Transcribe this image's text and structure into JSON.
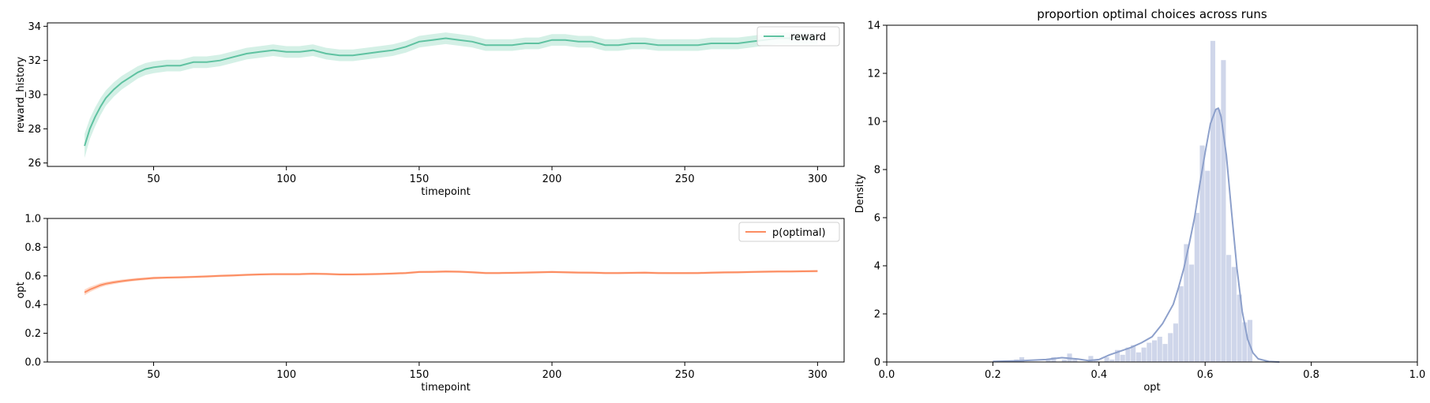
{
  "chart_data": [
    {
      "id": "reward",
      "type": "line",
      "xlabel": "timepoint",
      "ylabel": "reward_history",
      "xlim": [
        10,
        310
      ],
      "ylim": [
        25.8,
        34.2
      ],
      "xticks": [
        50,
        100,
        150,
        200,
        250,
        300
      ],
      "yticks": [
        26,
        28,
        30,
        32,
        34
      ],
      "legend": "top-right",
      "colors": {
        "line": "#5fc2a1",
        "band": "#d4f0e6"
      },
      "series": [
        {
          "name": "reward",
          "x": [
            24,
            26,
            28,
            30,
            32,
            35,
            38,
            41,
            44,
            47,
            50,
            55,
            60,
            65,
            70,
            75,
            80,
            85,
            90,
            95,
            100,
            105,
            110,
            115,
            120,
            125,
            130,
            135,
            140,
            145,
            150,
            155,
            160,
            165,
            170,
            175,
            180,
            185,
            190,
            195,
            200,
            205,
            210,
            215,
            220,
            225,
            230,
            235,
            240,
            245,
            250,
            255,
            260,
            265,
            270,
            275,
            280,
            285,
            290,
            295,
            300
          ],
          "y": [
            27.0,
            28.0,
            28.7,
            29.3,
            29.8,
            30.3,
            30.7,
            31.0,
            31.3,
            31.5,
            31.6,
            31.7,
            31.7,
            31.9,
            31.9,
            32.0,
            32.2,
            32.4,
            32.5,
            32.6,
            32.5,
            32.5,
            32.6,
            32.4,
            32.3,
            32.3,
            32.4,
            32.5,
            32.6,
            32.8,
            33.1,
            33.2,
            33.3,
            33.2,
            33.1,
            32.9,
            32.9,
            32.9,
            33.0,
            33.0,
            33.2,
            33.2,
            33.1,
            33.1,
            32.9,
            32.9,
            33.0,
            33.0,
            32.9,
            32.9,
            32.9,
            32.9,
            33.0,
            33.0,
            33.0,
            33.1,
            33.2,
            33.3,
            33.3,
            33.3,
            33.3
          ],
          "ci": [
            0.7,
            0.6,
            0.55,
            0.5,
            0.45,
            0.42,
            0.4,
            0.38,
            0.36,
            0.35,
            0.35,
            0.34,
            0.34,
            0.34,
            0.34,
            0.34,
            0.34,
            0.34,
            0.34,
            0.34,
            0.34,
            0.34,
            0.34,
            0.34,
            0.34,
            0.34,
            0.34,
            0.34,
            0.34,
            0.34,
            0.34,
            0.34,
            0.34,
            0.34,
            0.34,
            0.34,
            0.34,
            0.34,
            0.34,
            0.34,
            0.34,
            0.34,
            0.34,
            0.34,
            0.34,
            0.34,
            0.34,
            0.34,
            0.34,
            0.34,
            0.34,
            0.34,
            0.34,
            0.34,
            0.34,
            0.34,
            0.34,
            0.34,
            0.34,
            0.34,
            0.34
          ]
        }
      ]
    },
    {
      "id": "opt",
      "type": "line",
      "xlabel": "timepoint",
      "ylabel": "opt",
      "xlim": [
        10,
        310
      ],
      "ylim": [
        0.0,
        1.0
      ],
      "xticks": [
        50,
        100,
        150,
        200,
        250,
        300
      ],
      "yticks": [
        0.0,
        0.2,
        0.4,
        0.6,
        0.8,
        1.0
      ],
      "legend": "top-right",
      "colors": {
        "line": "#fc8d62",
        "band": "#fed9c9"
      },
      "series": [
        {
          "name": "p(optimal)",
          "x": [
            24,
            26,
            28,
            30,
            32,
            35,
            38,
            41,
            44,
            47,
            50,
            55,
            60,
            65,
            70,
            75,
            80,
            85,
            90,
            95,
            100,
            105,
            110,
            115,
            120,
            125,
            130,
            135,
            140,
            145,
            150,
            155,
            160,
            165,
            170,
            175,
            180,
            185,
            190,
            195,
            200,
            205,
            210,
            215,
            220,
            225,
            230,
            235,
            240,
            245,
            250,
            255,
            260,
            265,
            270,
            275,
            280,
            285,
            290,
            295,
            300
          ],
          "y": [
            0.485,
            0.505,
            0.52,
            0.535,
            0.545,
            0.555,
            0.563,
            0.57,
            0.576,
            0.58,
            0.585,
            0.588,
            0.59,
            0.593,
            0.596,
            0.6,
            0.603,
            0.607,
            0.61,
            0.612,
            0.612,
            0.612,
            0.615,
            0.613,
            0.61,
            0.61,
            0.611,
            0.613,
            0.616,
            0.62,
            0.627,
            0.628,
            0.63,
            0.629,
            0.625,
            0.62,
            0.62,
            0.621,
            0.623,
            0.625,
            0.627,
            0.625,
            0.623,
            0.622,
            0.62,
            0.62,
            0.621,
            0.622,
            0.62,
            0.619,
            0.619,
            0.62,
            0.622,
            0.624,
            0.625,
            0.627,
            0.629,
            0.63,
            0.631,
            0.632,
            0.633
          ],
          "ci": [
            0.02,
            0.018,
            0.016,
            0.015,
            0.013,
            0.012,
            0.011,
            0.01,
            0.01,
            0.009,
            0.009,
            0.008,
            0.008,
            0.008,
            0.008,
            0.008,
            0.008,
            0.008,
            0.008,
            0.008,
            0.008,
            0.008,
            0.008,
            0.008,
            0.008,
            0.008,
            0.008,
            0.008,
            0.008,
            0.008,
            0.008,
            0.008,
            0.008,
            0.008,
            0.008,
            0.008,
            0.008,
            0.008,
            0.008,
            0.008,
            0.008,
            0.008,
            0.008,
            0.008,
            0.008,
            0.008,
            0.008,
            0.008,
            0.008,
            0.008,
            0.008,
            0.008,
            0.008,
            0.008,
            0.008,
            0.008,
            0.008,
            0.008,
            0.008,
            0.008,
            0.008
          ]
        }
      ]
    },
    {
      "id": "hist",
      "type": "bar",
      "title": "proportion optimal choices across runs",
      "xlabel": "opt",
      "ylabel": "Density",
      "xlim": [
        0.0,
        1.0
      ],
      "ylim": [
        0,
        14
      ],
      "xticks": [
        0.0,
        0.2,
        0.4,
        0.6,
        0.8,
        1.0
      ],
      "yticks": [
        0,
        2,
        4,
        6,
        8,
        10,
        12,
        14
      ],
      "colors": {
        "bars": "#cfd6ea",
        "kde": "#8da0cb"
      },
      "bins": {
        "left": [
          0.24,
          0.25,
          0.26,
          0.27,
          0.28,
          0.29,
          0.3,
          0.31,
          0.32,
          0.33,
          0.34,
          0.35,
          0.36,
          0.37,
          0.38,
          0.39,
          0.4,
          0.41,
          0.42,
          0.43,
          0.44,
          0.45,
          0.46,
          0.47,
          0.48,
          0.49,
          0.5,
          0.51,
          0.52,
          0.53,
          0.54,
          0.55,
          0.56,
          0.57,
          0.58,
          0.59,
          0.6,
          0.61,
          0.62,
          0.63,
          0.64,
          0.65,
          0.66,
          0.67,
          0.68,
          0.69
        ],
        "width": 0.01,
        "density": [
          0.1,
          0.2,
          0.0,
          0.0,
          0.0,
          0.0,
          0.1,
          0.2,
          0.0,
          0.1,
          0.35,
          0.1,
          0.0,
          0.0,
          0.25,
          0.05,
          0.0,
          0.2,
          0.1,
          0.5,
          0.3,
          0.6,
          0.7,
          0.4,
          0.6,
          0.8,
          0.9,
          1.05,
          0.75,
          1.2,
          1.6,
          3.15,
          4.9,
          4.05,
          6.2,
          9.0,
          7.95,
          13.35,
          10.5,
          12.55,
          4.45,
          3.95,
          2.8,
          1.65,
          1.75,
          0.0
        ]
      },
      "kde": {
        "x": [
          0.2,
          0.25,
          0.3,
          0.33,
          0.36,
          0.38,
          0.4,
          0.42,
          0.44,
          0.46,
          0.48,
          0.5,
          0.52,
          0.54,
          0.55,
          0.56,
          0.57,
          0.58,
          0.59,
          0.6,
          0.61,
          0.62,
          0.625,
          0.63,
          0.64,
          0.65,
          0.66,
          0.67,
          0.68,
          0.69,
          0.7,
          0.72,
          0.74
        ],
        "y": [
          0.02,
          0.05,
          0.1,
          0.18,
          0.12,
          0.06,
          0.1,
          0.3,
          0.45,
          0.6,
          0.8,
          1.05,
          1.6,
          2.4,
          3.1,
          3.9,
          4.9,
          6.0,
          7.4,
          8.7,
          9.9,
          10.5,
          10.55,
          10.2,
          8.6,
          6.2,
          3.9,
          2.1,
          0.95,
          0.38,
          0.13,
          0.02,
          0.0
        ]
      }
    }
  ]
}
